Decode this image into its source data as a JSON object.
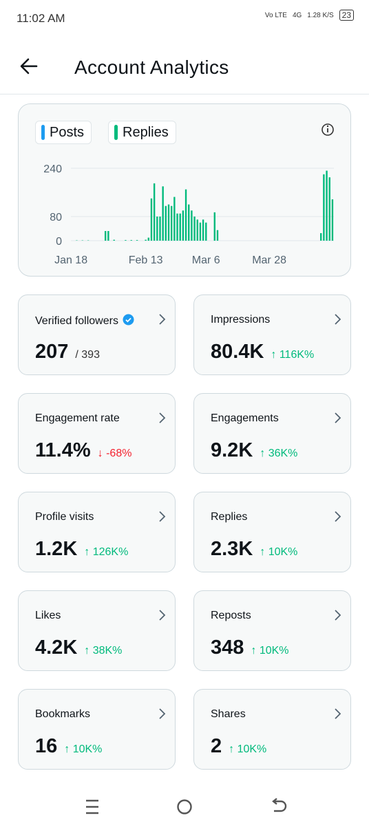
{
  "status_bar": {
    "time": "11:02 AM",
    "network": "Vo LTE",
    "signal": "4G",
    "speed": "1.28 K/S",
    "battery": "23"
  },
  "header": {
    "title": "Account Analytics"
  },
  "chart_data": {
    "type": "bar",
    "categories": [
      "Jan 18",
      null,
      null,
      null,
      null,
      null,
      null,
      null,
      null,
      null,
      null,
      null,
      null,
      null,
      null,
      null,
      null,
      null,
      null,
      null,
      null,
      null,
      null,
      null,
      null,
      null,
      "Feb 13",
      null,
      null,
      null,
      null,
      null,
      null,
      null,
      null,
      null,
      null,
      null,
      null,
      null,
      null,
      null,
      null,
      null,
      null,
      null,
      null,
      "Mar 6",
      null,
      null,
      null,
      null,
      null,
      null,
      null,
      null,
      null,
      null,
      null,
      null,
      null,
      null,
      null,
      null,
      null,
      null,
      null,
      null,
      null,
      "Mar 28",
      null,
      null,
      null,
      null,
      null,
      null,
      null,
      null,
      null,
      null,
      null,
      null,
      null,
      null,
      null,
      null,
      null,
      null,
      null,
      null,
      null,
      null
    ],
    "series": [
      {
        "name": "Posts",
        "color": "#1d9bf0",
        "values": [
          0,
          0,
          0,
          0,
          0,
          0,
          0,
          0,
          0,
          0,
          0,
          0,
          0,
          0,
          0,
          0,
          0,
          0,
          0,
          0,
          0,
          0,
          0,
          0,
          0,
          0,
          0,
          0,
          0,
          0,
          0,
          0,
          0,
          0,
          0,
          0,
          0,
          0,
          0,
          0,
          0,
          0,
          0,
          0,
          0,
          0,
          0,
          0,
          0,
          0,
          0,
          0,
          0,
          0,
          0,
          0,
          0,
          0,
          0,
          0,
          0,
          0,
          0,
          0,
          0,
          0,
          0,
          0,
          0,
          0,
          0,
          0,
          0,
          0,
          0,
          0,
          0,
          0,
          0,
          0,
          0,
          0,
          0,
          0,
          0,
          0,
          0,
          0,
          0,
          0,
          0,
          0
        ]
      },
      {
        "name": "Replies",
        "color": "#00ba7c",
        "values": [
          0,
          0,
          1,
          0,
          1,
          0,
          1,
          0,
          0,
          0,
          0,
          0,
          32,
          32,
          0,
          3,
          0,
          0,
          0,
          2,
          0,
          2,
          0,
          2,
          0,
          0,
          3,
          10,
          140,
          190,
          80,
          80,
          180,
          115,
          120,
          115,
          145,
          90,
          90,
          100,
          170,
          120,
          100,
          80,
          70,
          60,
          70,
          60,
          0,
          0,
          94,
          35,
          0,
          0,
          0,
          0,
          0,
          0,
          0,
          0,
          0,
          0,
          0,
          0,
          0,
          0,
          0,
          0,
          0,
          0,
          0,
          0,
          0,
          0,
          0,
          0,
          0,
          0,
          0,
          0,
          0,
          0,
          0,
          0,
          0,
          0,
          0,
          25,
          220,
          232,
          210,
          137
        ]
      }
    ],
    "ylim": [
      0,
      240
    ],
    "yticks": [
      0,
      80,
      240
    ],
    "grid": true
  },
  "cards": [
    {
      "title": "Verified followers",
      "value": "207",
      "total": "/ 393",
      "verified": true
    },
    {
      "title": "Impressions",
      "value": "80.4K",
      "change": "↑ 116K%",
      "trend": "up"
    },
    {
      "title": "Engagement rate",
      "value": "11.4%",
      "change": "↓ -68%",
      "trend": "down"
    },
    {
      "title": "Engagements",
      "value": "9.2K",
      "change": "↑ 36K%",
      "trend": "up"
    },
    {
      "title": "Profile visits",
      "value": "1.2K",
      "change": "↑ 126K%",
      "trend": "up"
    },
    {
      "title": "Replies",
      "value": "2.3K",
      "change": "↑ 10K%",
      "trend": "up"
    },
    {
      "title": "Likes",
      "value": "4.2K",
      "change": "↑ 38K%",
      "trend": "up"
    },
    {
      "title": "Reposts",
      "value": "348",
      "change": "↑ 10K%",
      "trend": "up"
    },
    {
      "title": "Bookmarks",
      "value": "16",
      "change": "↑ 10K%",
      "trend": "up"
    },
    {
      "title": "Shares",
      "value": "2",
      "change": "↑ 10K%",
      "trend": "up"
    }
  ]
}
